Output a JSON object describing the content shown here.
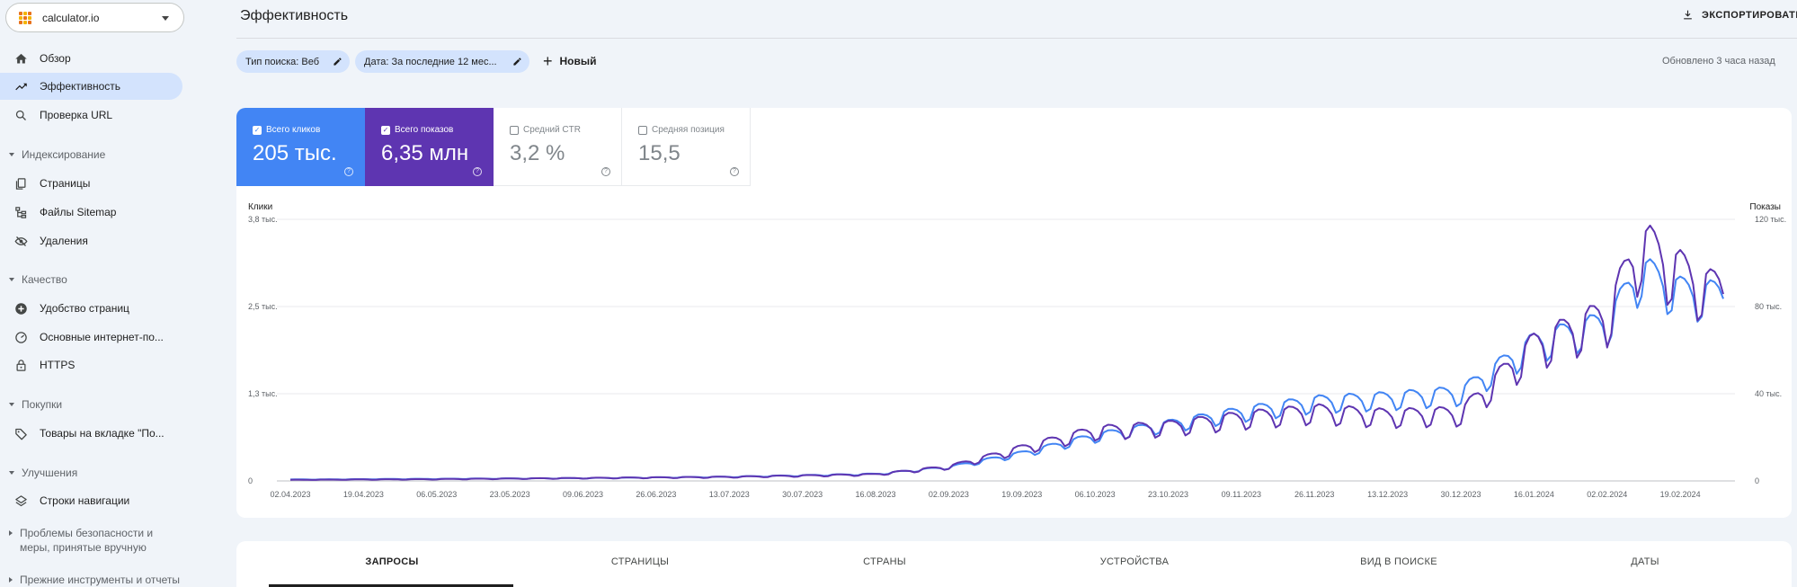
{
  "property": {
    "name": "calculator.io"
  },
  "sidebar": {
    "items": [
      {
        "label": "Обзор",
        "icon": "home-icon"
      },
      {
        "label": "Эффективность",
        "icon": "trending-up-icon",
        "active": true
      },
      {
        "label": "Проверка URL",
        "icon": "search-icon"
      }
    ],
    "sections": [
      {
        "label": "Индексирование",
        "items": [
          {
            "label": "Страницы",
            "icon": "pages-icon"
          },
          {
            "label": "Файлы Sitemap",
            "icon": "sitemap-icon"
          },
          {
            "label": "Удаления",
            "icon": "removals-icon"
          }
        ]
      },
      {
        "label": "Качество",
        "items": [
          {
            "label": "Удобство страниц",
            "icon": "page-experience-icon"
          },
          {
            "label": "Основные интернет-по...",
            "icon": "speedometer-icon"
          },
          {
            "label": "HTTPS",
            "icon": "lock-icon"
          }
        ]
      },
      {
        "label": "Покупки",
        "items": [
          {
            "label": "Товары на вкладке \"По...",
            "icon": "tag-icon"
          }
        ]
      },
      {
        "label": "Улучшения",
        "items": [
          {
            "label": "Строки навигации",
            "icon": "layers-icon"
          }
        ]
      }
    ],
    "collapsed": [
      {
        "label": "Проблемы безопасности и меры, принятые вручную"
      },
      {
        "label": "Прежние инструменты и отчеты"
      }
    ]
  },
  "header": {
    "title": "Эффективность",
    "export_label": "ЭКСПОРТИРОВАТЬ",
    "updated": "Обновлено 3 часа назад"
  },
  "filters": {
    "chips": [
      "Тип поиска: Веб",
      "Дата: За последние 12 мес..."
    ],
    "new_label": "Новый"
  },
  "metrics": [
    {
      "label": "Всего кликов",
      "value": "205 тыс.",
      "checked": true,
      "color": "#4285f4"
    },
    {
      "label": "Всего показов",
      "value": "6,35 млн",
      "checked": true,
      "color": "#5e35b1"
    },
    {
      "label": "Средний CTR",
      "value": "3,2 %",
      "checked": false
    },
    {
      "label": "Средняя позиция",
      "value": "15,5",
      "checked": false
    }
  ],
  "chart_data": {
    "type": "line",
    "left_axis": {
      "label": "Клики",
      "ticks": [
        "0",
        "1,3 тыс.",
        "2,5 тыс.",
        "3,8 тыс."
      ],
      "range": [
        0,
        3800
      ]
    },
    "right_axis": {
      "label": "Показы",
      "ticks": [
        "0",
        "40 тыс.",
        "80 тыс.",
        "120 тыс."
      ],
      "range": [
        0,
        120000
      ]
    },
    "x_ticks": [
      "02.04.2023",
      "19.04.2023",
      "06.05.2023",
      "23.05.2023",
      "09.06.2023",
      "26.06.2023",
      "13.07.2023",
      "30.07.2023",
      "16.08.2023",
      "02.09.2023",
      "19.09.2023",
      "06.10.2023",
      "23.10.2023",
      "09.11.2023",
      "26.11.2023",
      "13.12.2023",
      "30.12.2023",
      "16.01.2024",
      "02.02.2024",
      "19.02.2024"
    ],
    "grid": true,
    "series": [
      {
        "name": "Всего кликов",
        "color": "#4285f4",
        "axis": "left",
        "x": [
          "02.04.2023",
          "06.05.2023",
          "09.06.2023",
          "13.07.2023",
          "16.08.2023",
          "02.09.2023",
          "19.09.2023",
          "06.10.2023",
          "23.10.2023",
          "09.11.2023",
          "26.11.2023",
          "13.12.2023",
          "30.12.2023",
          "16.01.2024",
          "02.02.2024",
          "10.02.2024",
          "19.02.2024",
          "26.02.2024"
        ],
        "values": [
          20,
          30,
          40,
          60,
          100,
          200,
          400,
          650,
          820,
          1000,
          1150,
          1200,
          1280,
          2000,
          2300,
          3050,
          2750,
          2700
        ]
      },
      {
        "name": "Всего показов",
        "color": "#5e35b1",
        "axis": "right",
        "x": [
          "02.04.2023",
          "06.05.2023",
          "09.06.2023",
          "13.07.2023",
          "16.08.2023",
          "02.09.2023",
          "19.09.2023",
          "06.10.2023",
          "23.10.2023",
          "09.11.2023",
          "26.11.2023",
          "13.12.2023",
          "30.12.2023",
          "16.01.2024",
          "02.02.2024",
          "10.02.2024",
          "19.02.2024",
          "26.02.2024"
        ],
        "values": [
          500,
          800,
          1300,
          1800,
          3000,
          6500,
          15000,
          23000,
          25000,
          29000,
          32000,
          30000,
          31000,
          62000,
          76000,
          109000,
          96000,
          88000
        ]
      }
    ]
  },
  "tabs": [
    {
      "label": "ЗАПРОСЫ",
      "active": true
    },
    {
      "label": "СТРАНИЦЫ"
    },
    {
      "label": "СТРАНЫ"
    },
    {
      "label": "УСТРОЙСТВА"
    },
    {
      "label": "ВИД В ПОИСКЕ"
    },
    {
      "label": "ДАТЫ"
    }
  ]
}
